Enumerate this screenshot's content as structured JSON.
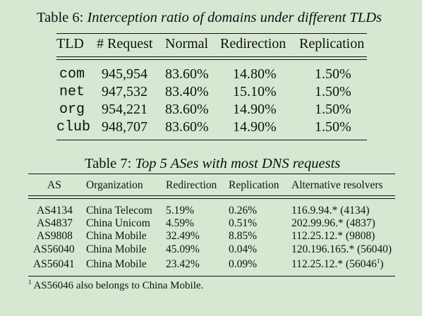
{
  "table6": {
    "caption_prefix": "Table 6:",
    "caption_title": "Interception ratio of domains under different TLDs",
    "headers": [
      "TLD",
      "# Request",
      "Normal",
      "Redirection",
      "Replication"
    ],
    "rows": [
      [
        "com",
        "945,954",
        "83.60%",
        "14.80%",
        "1.50%"
      ],
      [
        "net",
        "947,532",
        "83.40%",
        "15.10%",
        "1.50%"
      ],
      [
        "org",
        "954,221",
        "83.60%",
        "14.90%",
        "1.50%"
      ],
      [
        "club",
        "948,707",
        "83.60%",
        "14.90%",
        "1.50%"
      ]
    ]
  },
  "table7": {
    "caption_prefix": "Table 7:",
    "caption_title": "Top 5 ASes with most DNS requests",
    "headers": [
      "AS",
      "Organization",
      "Redirection",
      "Replication",
      "Alternative resolvers"
    ],
    "rows": [
      [
        "AS4134",
        "China Telecom",
        "5.19%",
        "0.26%",
        "116.9.94.* (4134)"
      ],
      [
        "AS4837",
        "China Unicom",
        "4.59%",
        "0.51%",
        "202.99.96.* (4837)"
      ],
      [
        "AS9808",
        "China Mobile",
        "32.49%",
        "8.85%",
        "112.25.12.* (9808)"
      ],
      [
        "AS56040",
        "China Mobile",
        "45.09%",
        "0.04%",
        "120.196.165.* (56040)"
      ],
      [
        "AS56041",
        "China Mobile",
        "23.42%",
        "0.09%",
        "112.25.12.* (56046"
      ]
    ],
    "last_row_suffix_mark": "1",
    "last_row_suffix_close": ")",
    "footnote_mark": "1",
    "footnote_text": "AS56046 also belongs to China Mobile."
  }
}
